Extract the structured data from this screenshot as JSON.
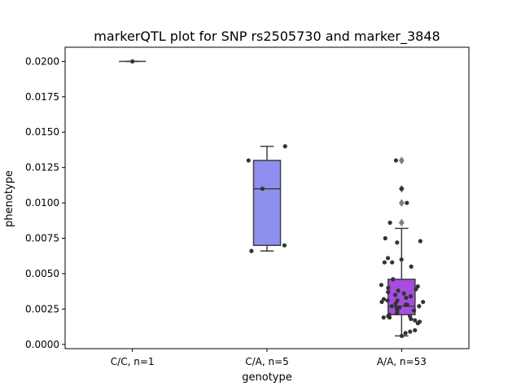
{
  "chart_data": {
    "type": "box",
    "title": "markerQTL plot for SNP rs2505730 and marker_3848",
    "xlabel": "genotype",
    "ylabel": "phenotype",
    "ylim": [
      -0.0003,
      0.021
    ],
    "yticks": [
      0.0,
      0.0025,
      0.005,
      0.0075,
      0.01,
      0.0125,
      0.015,
      0.0175,
      0.02
    ],
    "ytick_labels": [
      "0.0000",
      "0.0025",
      "0.0050",
      "0.0075",
      "0.0100",
      "0.0125",
      "0.0150",
      "0.0175",
      "0.0200"
    ],
    "categories": [
      "C/C, n=1",
      "C/A, n=5",
      "A/A, n=53"
    ],
    "grid": false,
    "box_colors": [
      "#8f8ff0",
      "#8f8ff0",
      "#a64de0"
    ],
    "point_color": "#333333",
    "boxes": [
      {
        "category": "C/C, n=1",
        "q1": 0.02,
        "median": 0.02,
        "q3": 0.02,
        "whisker_low": 0.02,
        "whisker_high": 0.02,
        "outliers": [],
        "points": [
          0.02
        ]
      },
      {
        "category": "C/A, n=5",
        "q1": 0.007,
        "median": 0.011,
        "q3": 0.013,
        "whisker_low": 0.0066,
        "whisker_high": 0.014,
        "outliers": [],
        "points": [
          0.014,
          0.013,
          0.011,
          0.007,
          0.0066
        ]
      },
      {
        "category": "A/A, n=53",
        "q1": 0.0021,
        "median": 0.0027,
        "q3": 0.0046,
        "whisker_low": 0.0006,
        "whisker_high": 0.0082,
        "outliers": [
          0.013,
          0.011,
          0.01,
          0.0086
        ],
        "points": [
          0.013,
          0.011,
          0.01,
          0.0086,
          0.0075,
          0.0073,
          0.0072,
          0.0061,
          0.006,
          0.0058,
          0.0058,
          0.0055,
          0.0046,
          0.0046,
          0.0042,
          0.0041,
          0.004,
          0.0039,
          0.0038,
          0.0037,
          0.0036,
          0.0035,
          0.0034,
          0.0033,
          0.0032,
          0.0031,
          0.0031,
          0.003,
          0.003,
          0.0029,
          0.0028,
          0.0028,
          0.0027,
          0.0027,
          0.0026,
          0.0026,
          0.0025,
          0.0024,
          0.0023,
          0.0022,
          0.0021,
          0.002,
          0.002,
          0.0019,
          0.0019,
          0.0018,
          0.0017,
          0.0016,
          0.0015,
          0.001,
          0.0009,
          0.0008,
          0.0006
        ]
      }
    ]
  }
}
